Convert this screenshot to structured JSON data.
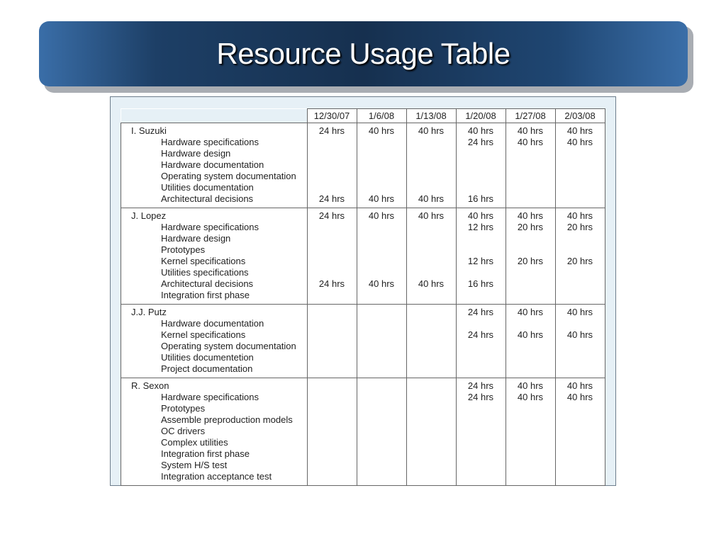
{
  "title": "Resource Usage Table",
  "table": {
    "columns": [
      "12/30/07",
      "1/6/08",
      "1/13/08",
      "1/20/08",
      "1/27/08",
      "2/03/08"
    ],
    "groups": [
      {
        "name": "I.  Suzuki",
        "rows": [
          {
            "label": "I.  Suzuki",
            "values": [
              "24 hrs",
              "40 hrs",
              "40 hrs",
              "40 hrs",
              "40 hrs",
              "40 hrs"
            ]
          },
          {
            "label": "Hardware specifications",
            "values": [
              "",
              "",
              "",
              "24 hrs",
              "40 hrs",
              "40 hrs"
            ]
          },
          {
            "label": "Hardware design",
            "values": [
              "",
              "",
              "",
              "",
              "",
              ""
            ]
          },
          {
            "label": "Hardware documentation",
            "values": [
              "",
              "",
              "",
              "",
              "",
              ""
            ]
          },
          {
            "label": "Operating system documentation",
            "values": [
              "",
              "",
              "",
              "",
              "",
              ""
            ]
          },
          {
            "label": "Utilities documentation",
            "values": [
              "",
              "",
              "",
              "",
              "",
              ""
            ]
          },
          {
            "label": "Architectural decisions",
            "values": [
              "24 hrs",
              "40 hrs",
              "40 hrs",
              "16 hrs",
              "",
              ""
            ]
          }
        ]
      },
      {
        "name": "J.  Lopez",
        "rows": [
          {
            "label": "J.  Lopez",
            "values": [
              "24 hrs",
              "40 hrs",
              "40 hrs",
              "40 hrs",
              "40 hrs",
              "40 hrs"
            ]
          },
          {
            "label": "Hardware specifications",
            "values": [
              "",
              "",
              "",
              "12 hrs",
              "20 hrs",
              "20 hrs"
            ]
          },
          {
            "label": "Hardware design",
            "values": [
              "",
              "",
              "",
              "",
              "",
              ""
            ]
          },
          {
            "label": "Prototypes",
            "values": [
              "",
              "",
              "",
              "",
              "",
              ""
            ]
          },
          {
            "label": "Kernel specifications",
            "values": [
              "",
              "",
              "",
              "12 hrs",
              "20 hrs",
              "20 hrs"
            ]
          },
          {
            "label": "Utilities specifications",
            "values": [
              "",
              "",
              "",
              "",
              "",
              ""
            ]
          },
          {
            "label": "Architectural decisions",
            "values": [
              "24 hrs",
              "40 hrs",
              "40 hrs",
              "16 hrs",
              "",
              ""
            ]
          },
          {
            "label": "Integration first phase",
            "values": [
              "",
              "",
              "",
              "",
              "",
              ""
            ]
          }
        ]
      },
      {
        "name": "J.J.  Putz",
        "rows": [
          {
            "label": "J.J.  Putz",
            "values": [
              "",
              "",
              "",
              "24 hrs",
              "40 hrs",
              "40 hrs"
            ]
          },
          {
            "label": "Hardware documentation",
            "values": [
              "",
              "",
              "",
              "",
              "",
              ""
            ]
          },
          {
            "label": "Kernel specifications",
            "values": [
              "",
              "",
              "",
              "24 hrs",
              "40 hrs",
              "40 hrs"
            ]
          },
          {
            "label": "Operating system documentation",
            "values": [
              "",
              "",
              "",
              "",
              "",
              ""
            ]
          },
          {
            "label": "Utilities documentetion",
            "values": [
              "",
              "",
              "",
              "",
              "",
              ""
            ]
          },
          {
            "label": "Project documentation",
            "values": [
              "",
              "",
              "",
              "",
              "",
              ""
            ]
          }
        ]
      },
      {
        "name": "R.  Sexon",
        "rows": [
          {
            "label": "R.  Sexon",
            "values": [
              "",
              "",
              "",
              "24 hrs",
              "40 hrs",
              "40 hrs"
            ]
          },
          {
            "label": "Hardware specifications",
            "values": [
              "",
              "",
              "",
              "24 hrs",
              "40 hrs",
              "40 hrs"
            ]
          },
          {
            "label": "Prototypes",
            "values": [
              "",
              "",
              "",
              "",
              "",
              ""
            ]
          },
          {
            "label": "Assemble preproduction models",
            "values": [
              "",
              "",
              "",
              "",
              "",
              ""
            ]
          },
          {
            "label": "OC drivers",
            "values": [
              "",
              "",
              "",
              "",
              "",
              ""
            ]
          },
          {
            "label": "Complex utilities",
            "values": [
              "",
              "",
              "",
              "",
              "",
              ""
            ]
          },
          {
            "label": "Integration first phase",
            "values": [
              "",
              "",
              "",
              "",
              "",
              ""
            ]
          },
          {
            "label": "System H/S test",
            "values": [
              "",
              "",
              "",
              "",
              "",
              ""
            ]
          },
          {
            "label": "Integration acceptance test",
            "values": [
              "",
              "",
              "",
              "",
              "",
              ""
            ]
          }
        ]
      }
    ]
  }
}
